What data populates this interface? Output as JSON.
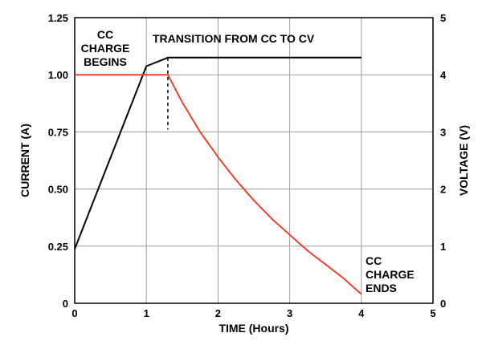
{
  "chart_data": {
    "type": "line",
    "title": "",
    "xlabel": "TIME (Hours)",
    "ylabel_left": "CURRENT (A)",
    "ylabel_right": "VOLTAGE (V)",
    "xlim": [
      0,
      5
    ],
    "ylim_left": [
      0,
      1.25
    ],
    "ylim_right": [
      0,
      5
    ],
    "x_ticks": [
      "0",
      "1",
      "2",
      "3",
      "4",
      "5"
    ],
    "y_ticks_left": [
      "0",
      "0.25",
      "0.50",
      "0.75",
      "1.00",
      "1.25"
    ],
    "y_ticks_right": [
      "0",
      "1",
      "2",
      "3",
      "4",
      "5"
    ],
    "grid": true,
    "series": [
      {
        "axis": "right",
        "color": "#000000",
        "points": [
          [
            0,
            0.95
          ],
          [
            1.0,
            4.15
          ],
          [
            1.3,
            4.3
          ],
          [
            4.0,
            4.3
          ]
        ]
      },
      {
        "axis": "left",
        "color": "#e8452c",
        "points": [
          [
            0,
            1.0
          ],
          [
            1.3,
            1.0
          ],
          [
            1.5,
            0.88
          ],
          [
            1.75,
            0.75
          ],
          [
            2.0,
            0.64
          ],
          [
            2.25,
            0.54
          ],
          [
            2.5,
            0.45
          ],
          [
            2.75,
            0.37
          ],
          [
            3.0,
            0.3
          ],
          [
            3.25,
            0.23
          ],
          [
            3.5,
            0.17
          ],
          [
            3.75,
            0.11
          ],
          [
            4.0,
            0.04
          ]
        ]
      }
    ],
    "transition_x": 1.3,
    "annotations": {
      "cc_charge_begins": [
        "CC",
        "CHARGE",
        "BEGINS"
      ],
      "transition": "TRANSITION FROM CC TO CV",
      "cc_charge_ends": [
        "CC",
        "CHARGE",
        "ENDS"
      ]
    }
  }
}
